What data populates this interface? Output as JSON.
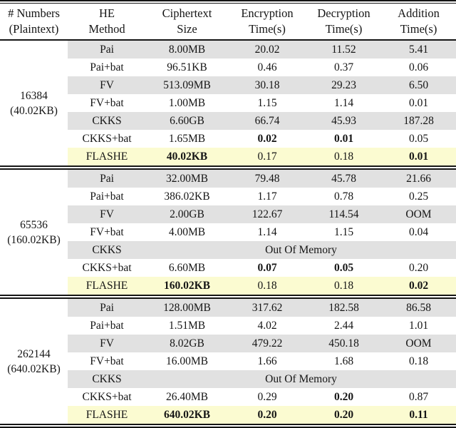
{
  "table_name": "HE methods benchmark comparison",
  "colors": {
    "gray_row": "#e1e1e1",
    "yellow_row": "#fbfbd1",
    "rule": "#151515",
    "text": "#151515"
  },
  "columns": [
    {
      "line1": "# Numbers",
      "line2": "(Plaintext)"
    },
    {
      "line1": "HE",
      "line2": "Method"
    },
    {
      "line1": "Ciphertext",
      "line2": "Size"
    },
    {
      "line1": "Encryption",
      "line2": "Time(s)"
    },
    {
      "line1": "Decryption",
      "line2": "Time(s)"
    },
    {
      "line1": "Addition",
      "line2": "Time(s)"
    }
  ],
  "groups": [
    {
      "label": {
        "line1": "16384",
        "line2": "(40.02KB)"
      },
      "rows": [
        {
          "method": "Pai",
          "shade": "gray",
          "cells": [
            {
              "text": "8.00MB"
            },
            {
              "text": "20.02"
            },
            {
              "text": "11.52"
            },
            {
              "text": "5.41"
            }
          ]
        },
        {
          "method": "Pai+bat",
          "shade": "white",
          "cells": [
            {
              "text": "96.51KB"
            },
            {
              "text": "0.46"
            },
            {
              "text": "0.37"
            },
            {
              "text": "0.06"
            }
          ]
        },
        {
          "method": "FV",
          "shade": "gray",
          "cells": [
            {
              "text": "513.09MB"
            },
            {
              "text": "30.18"
            },
            {
              "text": "29.23"
            },
            {
              "text": "6.50"
            }
          ]
        },
        {
          "method": "FV+bat",
          "shade": "white",
          "cells": [
            {
              "text": "1.00MB"
            },
            {
              "text": "1.15"
            },
            {
              "text": "1.14"
            },
            {
              "text": "0.01"
            }
          ]
        },
        {
          "method": "CKKS",
          "shade": "gray",
          "cells": [
            {
              "text": "6.60GB"
            },
            {
              "text": "66.74"
            },
            {
              "text": "45.93"
            },
            {
              "text": "187.28"
            }
          ]
        },
        {
          "method": "CKKS+bat",
          "shade": "white",
          "cells": [
            {
              "text": "1.65MB"
            },
            {
              "text": "0.02",
              "bold": true
            },
            {
              "text": "0.01",
              "bold": true
            },
            {
              "text": "0.05"
            }
          ]
        },
        {
          "method": "FLASHE",
          "shade": "yellow",
          "cells": [
            {
              "text": "40.02KB",
              "bold": true
            },
            {
              "text": "0.17"
            },
            {
              "text": "0.18"
            },
            {
              "text": "0.01",
              "bold": true
            }
          ]
        }
      ]
    },
    {
      "label": {
        "line1": "65536",
        "line2": "(160.02KB)"
      },
      "rows": [
        {
          "method": "Pai",
          "shade": "gray",
          "cells": [
            {
              "text": "32.00MB"
            },
            {
              "text": "79.48"
            },
            {
              "text": "45.78"
            },
            {
              "text": "21.66"
            }
          ]
        },
        {
          "method": "Pai+bat",
          "shade": "white",
          "cells": [
            {
              "text": "386.02KB"
            },
            {
              "text": "1.17"
            },
            {
              "text": "0.78"
            },
            {
              "text": "0.25"
            }
          ]
        },
        {
          "method": "FV",
          "shade": "gray",
          "cells": [
            {
              "text": "2.00GB"
            },
            {
              "text": "122.67"
            },
            {
              "text": "114.54"
            },
            {
              "text": "OOM"
            }
          ]
        },
        {
          "method": "FV+bat",
          "shade": "white",
          "cells": [
            {
              "text": "4.00MB"
            },
            {
              "text": "1.14"
            },
            {
              "text": "1.15"
            },
            {
              "text": "0.04"
            }
          ]
        },
        {
          "method": "CKKS",
          "shade": "gray",
          "span": "Out Of Memory"
        },
        {
          "method": "CKKS+bat",
          "shade": "white",
          "cells": [
            {
              "text": "6.60MB"
            },
            {
              "text": "0.07",
              "bold": true
            },
            {
              "text": "0.05",
              "bold": true
            },
            {
              "text": "0.20"
            }
          ]
        },
        {
          "method": "FLASHE",
          "shade": "yellow",
          "cells": [
            {
              "text": "160.02KB",
              "bold": true
            },
            {
              "text": "0.18"
            },
            {
              "text": "0.18"
            },
            {
              "text": "0.02",
              "bold": true
            }
          ]
        }
      ]
    },
    {
      "label": {
        "line1": "262144",
        "line2": "(640.02KB)"
      },
      "rows": [
        {
          "method": "Pai",
          "shade": "gray",
          "cells": [
            {
              "text": "128.00MB"
            },
            {
              "text": "317.62"
            },
            {
              "text": "182.58"
            },
            {
              "text": "86.58"
            }
          ]
        },
        {
          "method": "Pai+bat",
          "shade": "white",
          "cells": [
            {
              "text": "1.51MB"
            },
            {
              "text": "4.02"
            },
            {
              "text": "2.44"
            },
            {
              "text": "1.01"
            }
          ]
        },
        {
          "method": "FV",
          "shade": "gray",
          "cells": [
            {
              "text": "8.02GB"
            },
            {
              "text": "479.22"
            },
            {
              "text": "450.18"
            },
            {
              "text": "OOM"
            }
          ]
        },
        {
          "method": "FV+bat",
          "shade": "white",
          "cells": [
            {
              "text": "16.00MB"
            },
            {
              "text": "1.66"
            },
            {
              "text": "1.68"
            },
            {
              "text": "0.18"
            }
          ]
        },
        {
          "method": "CKKS",
          "shade": "gray",
          "span": "Out Of Memory"
        },
        {
          "method": "CKKS+bat",
          "shade": "white",
          "cells": [
            {
              "text": "26.40MB"
            },
            {
              "text": "0.29"
            },
            {
              "text": "0.20",
              "bold": true
            },
            {
              "text": "0.87"
            }
          ]
        },
        {
          "method": "FLASHE",
          "shade": "yellow",
          "cells": [
            {
              "text": "640.02KB",
              "bold": true
            },
            {
              "text": "0.20",
              "bold": true
            },
            {
              "text": "0.20",
              "bold": true
            },
            {
              "text": "0.11",
              "bold": true
            }
          ]
        }
      ]
    }
  ]
}
